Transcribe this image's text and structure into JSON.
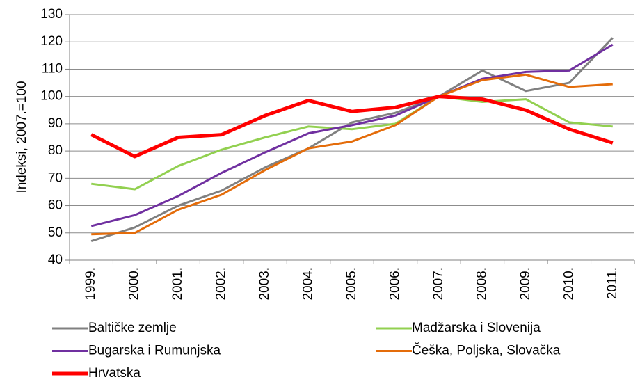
{
  "chart_data": {
    "type": "line",
    "y_label": "Indeksi, 2007.=100",
    "categories": [
      "1999.",
      "2000.",
      "2001.",
      "2002.",
      "2003.",
      "2004.",
      "2005.",
      "2006.",
      "2007.",
      "2008.",
      "2009.",
      "2010.",
      "2011."
    ],
    "series": [
      {
        "name": "Baltičke zemlje",
        "color": "#808080",
        "values": [
          47,
          52,
          60,
          65.5,
          74,
          81,
          90.5,
          94,
          100,
          109.5,
          102,
          105,
          121.5
        ]
      },
      {
        "name": "Madžarska i Slovenija",
        "color": "#92d050",
        "values": [
          68,
          66,
          74.5,
          80.5,
          85,
          89,
          88,
          90,
          100,
          98,
          99,
          90.5,
          89
        ]
      },
      {
        "name": "Bugarska i Rumunjska",
        "color": "#7030a0",
        "values": [
          52.5,
          56.5,
          63.5,
          72,
          79.5,
          86.5,
          89.5,
          93,
          100,
          106.5,
          109,
          109.5,
          119
        ]
      },
      {
        "name": "Češka, Poljska, Slovačka",
        "color": "#e46c0a",
        "values": [
          49.5,
          50,
          58.5,
          64,
          73,
          81,
          83.5,
          89.5,
          100,
          106,
          108,
          103.5,
          104.5
        ]
      },
      {
        "name": "Hrvatska",
        "color": "#ff0000",
        "values": [
          86,
          78,
          85,
          86,
          93,
          98.5,
          94.5,
          96,
          100,
          99,
          95,
          88,
          83
        ]
      }
    ],
    "ylim": [
      40,
      130
    ],
    "yticks": [
      40,
      50,
      60,
      70,
      80,
      90,
      100,
      110,
      120,
      130
    ],
    "grid": true
  }
}
